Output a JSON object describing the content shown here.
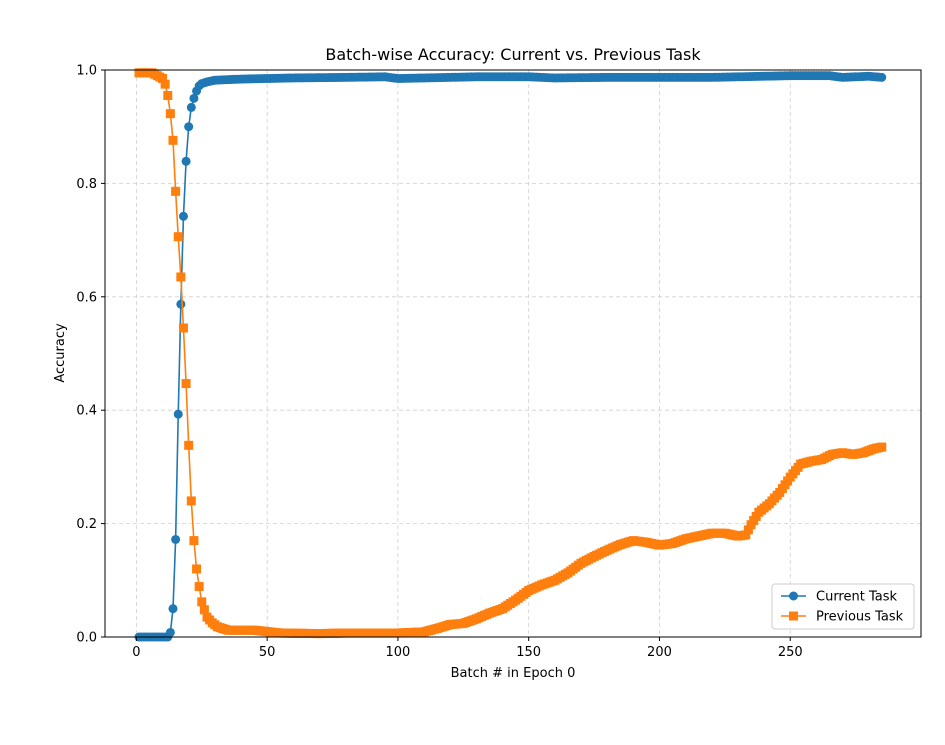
{
  "chart_data": {
    "type": "line",
    "title": "Batch-wise Accuracy: Current vs. Previous Task",
    "xlabel": "Batch # in Epoch 0",
    "ylabel": "Accuracy",
    "xlim": [
      -12,
      300
    ],
    "ylim": [
      0,
      1.0
    ],
    "xticks": [
      0,
      50,
      100,
      150,
      200,
      250
    ],
    "yticks": [
      0.0,
      0.2,
      0.4,
      0.6,
      0.8,
      1.0
    ],
    "grid": true,
    "legend_position": "bottom-right",
    "colors": {
      "current": "#1f77b4",
      "previous": "#ff7f0e",
      "grid": "#d0d0d0"
    },
    "series": [
      {
        "name": "Current Task",
        "marker": "circle",
        "keypoints": [
          [
            1,
            0.0
          ],
          [
            12,
            0.0
          ],
          [
            13,
            0.008
          ],
          [
            14,
            0.05
          ],
          [
            15,
            0.172
          ],
          [
            16,
            0.393
          ],
          [
            17,
            0.587
          ],
          [
            18,
            0.742
          ],
          [
            19,
            0.839
          ],
          [
            20,
            0.9
          ],
          [
            21,
            0.934
          ],
          [
            22,
            0.95
          ],
          [
            23,
            0.963
          ],
          [
            24,
            0.972
          ],
          [
            25,
            0.976
          ],
          [
            27,
            0.979
          ],
          [
            30,
            0.982
          ],
          [
            40,
            0.984
          ],
          [
            60,
            0.986
          ],
          [
            80,
            0.987
          ],
          [
            95,
            0.988
          ],
          [
            100,
            0.985
          ],
          [
            110,
            0.986
          ],
          [
            130,
            0.988
          ],
          [
            150,
            0.988
          ],
          [
            160,
            0.986
          ],
          [
            180,
            0.987
          ],
          [
            200,
            0.987
          ],
          [
            220,
            0.987
          ],
          [
            240,
            0.989
          ],
          [
            250,
            0.99
          ],
          [
            265,
            0.99
          ],
          [
            270,
            0.987
          ],
          [
            280,
            0.989
          ],
          [
            285,
            0.987
          ]
        ]
      },
      {
        "name": "Previous Task",
        "marker": "square",
        "keypoints": [
          [
            1,
            0.995
          ],
          [
            6,
            0.995
          ],
          [
            8,
            0.99
          ],
          [
            10,
            0.985
          ],
          [
            11,
            0.975
          ],
          [
            12,
            0.955
          ],
          [
            13,
            0.923
          ],
          [
            14,
            0.876
          ],
          [
            15,
            0.786
          ],
          [
            16,
            0.706
          ],
          [
            17,
            0.635
          ],
          [
            18,
            0.545
          ],
          [
            19,
            0.447
          ],
          [
            20,
            0.338
          ],
          [
            21,
            0.24
          ],
          [
            22,
            0.17
          ],
          [
            23,
            0.12
          ],
          [
            24,
            0.089
          ],
          [
            25,
            0.062
          ],
          [
            26,
            0.048
          ],
          [
            27,
            0.035
          ],
          [
            29,
            0.025
          ],
          [
            31,
            0.018
          ],
          [
            35,
            0.012
          ],
          [
            45,
            0.012
          ],
          [
            55,
            0.007
          ],
          [
            70,
            0.006
          ],
          [
            80,
            0.007
          ],
          [
            100,
            0.007
          ],
          [
            110,
            0.009
          ],
          [
            115,
            0.015
          ],
          [
            120,
            0.022
          ],
          [
            125,
            0.024
          ],
          [
            130,
            0.032
          ],
          [
            135,
            0.042
          ],
          [
            140,
            0.05
          ],
          [
            145,
            0.065
          ],
          [
            150,
            0.082
          ],
          [
            155,
            0.092
          ],
          [
            160,
            0.1
          ],
          [
            165,
            0.113
          ],
          [
            170,
            0.13
          ],
          [
            175,
            0.142
          ],
          [
            180,
            0.153
          ],
          [
            185,
            0.163
          ],
          [
            190,
            0.17
          ],
          [
            195,
            0.167
          ],
          [
            200,
            0.162
          ],
          [
            205,
            0.165
          ],
          [
            210,
            0.173
          ],
          [
            215,
            0.178
          ],
          [
            220,
            0.183
          ],
          [
            225,
            0.183
          ],
          [
            230,
            0.178
          ],
          [
            233,
            0.18
          ],
          [
            235,
            0.198
          ],
          [
            238,
            0.22
          ],
          [
            242,
            0.235
          ],
          [
            246,
            0.255
          ],
          [
            250,
            0.282
          ],
          [
            254,
            0.305
          ],
          [
            258,
            0.31
          ],
          [
            262,
            0.313
          ],
          [
            266,
            0.322
          ],
          [
            270,
            0.325
          ],
          [
            274,
            0.322
          ],
          [
            278,
            0.325
          ],
          [
            282,
            0.332
          ],
          [
            285,
            0.335
          ]
        ]
      }
    ]
  }
}
